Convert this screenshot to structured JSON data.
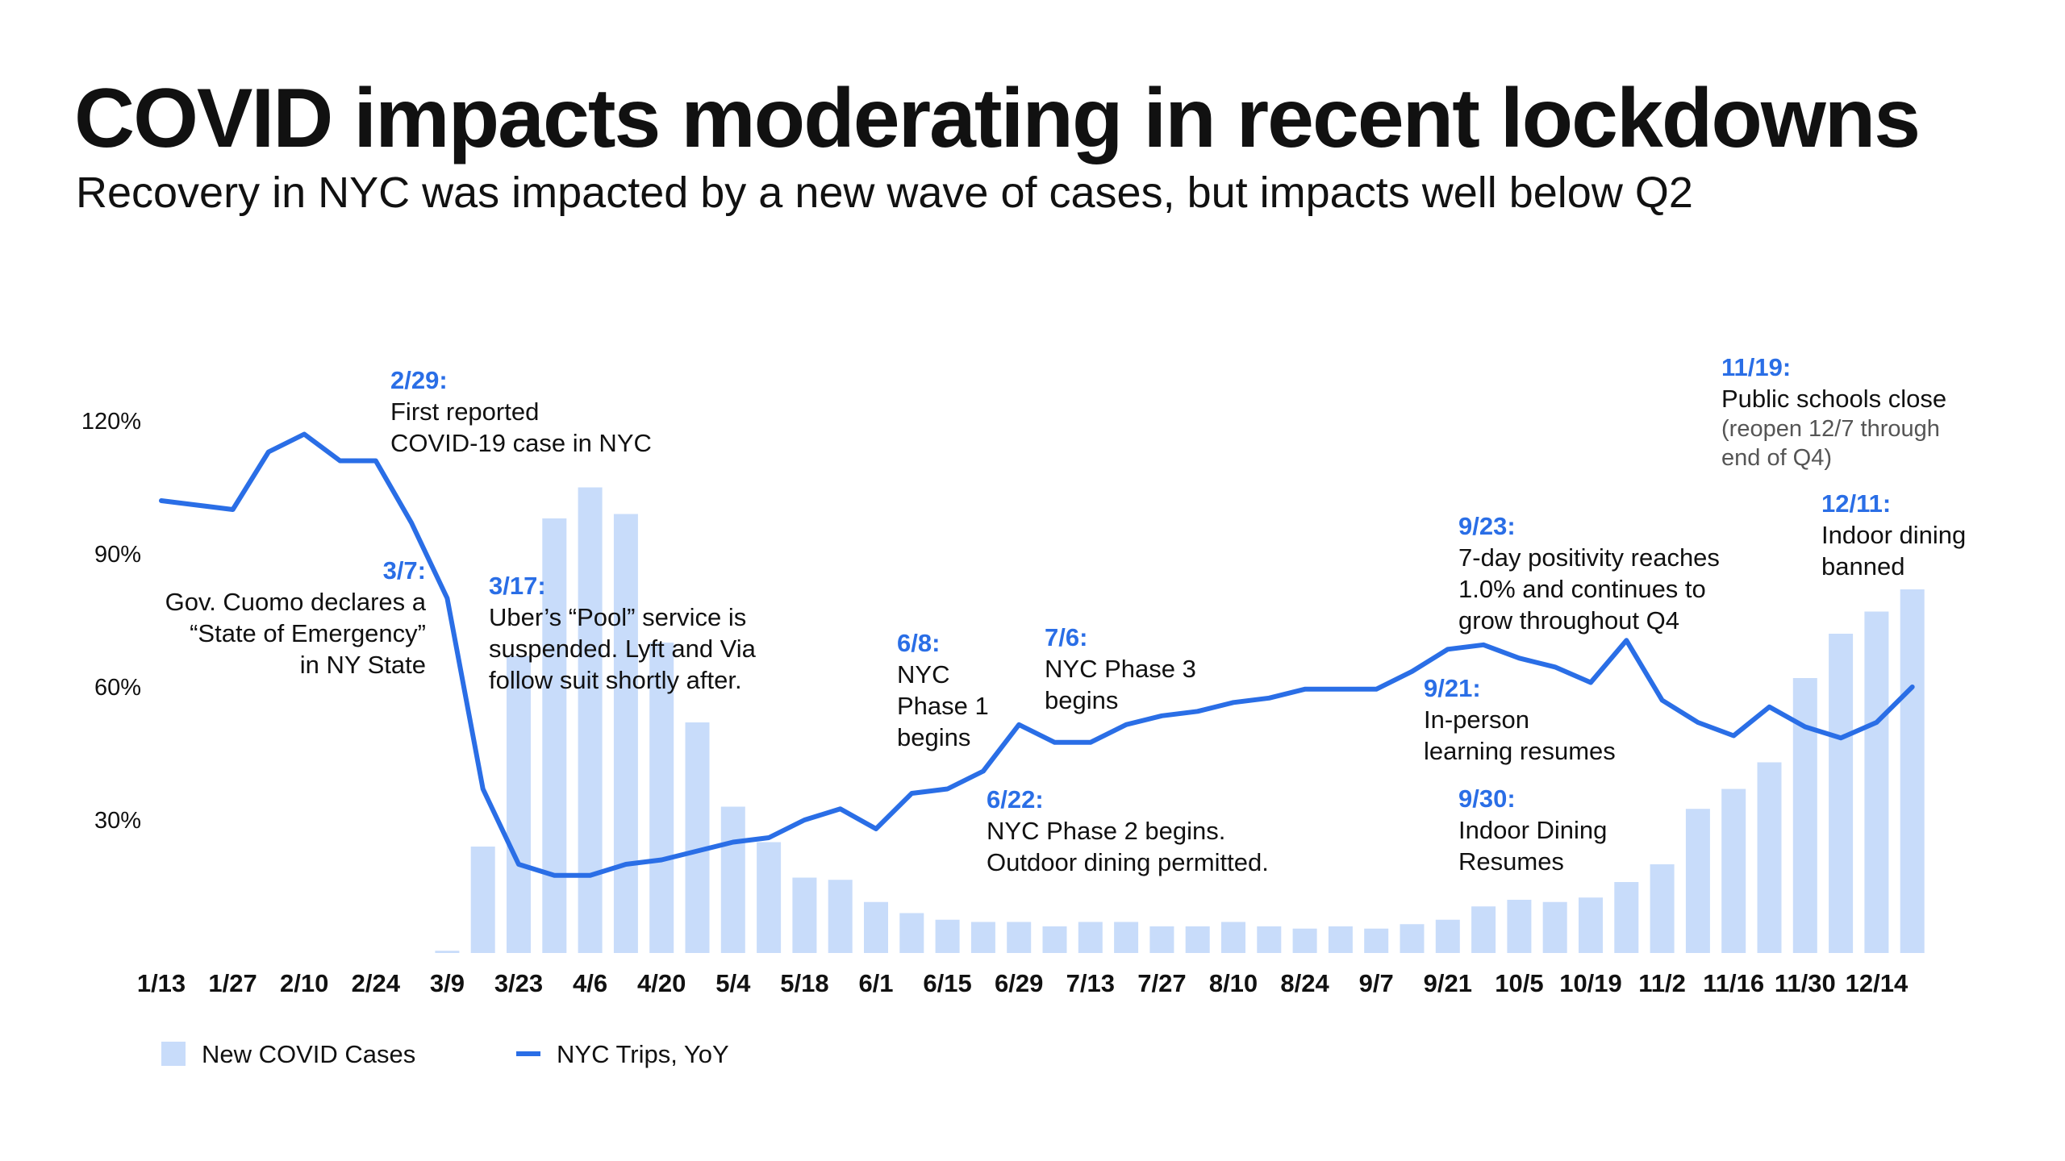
{
  "header": {
    "title": "COVID impacts moderating in recent lockdowns",
    "subtitle": "Recovery in NYC was impacted by a new wave of cases, but impacts well below Q2"
  },
  "colors": {
    "line": "#2a6ee6",
    "bar": "#c8dcfa",
    "annotation_date": "#2a6ee6",
    "text": "#111111",
    "muted": "#555555"
  },
  "chart_data": {
    "type": "bar",
    "title": "COVID impacts moderating in recent lockdowns",
    "subtitle": "Recovery in NYC was impacted by a new wave of cases, but impacts well below Q2",
    "xlabel": "",
    "ylabel": "",
    "ylim": [
      0,
      130
    ],
    "grid": false,
    "legend_position": "bottom-left",
    "x_tick_labels": [
      "1/13",
      "1/27",
      "2/10",
      "2/24",
      "3/9",
      "3/23",
      "4/6",
      "4/20",
      "5/4",
      "5/18",
      "6/1",
      "6/15",
      "6/29",
      "7/13",
      "7/27",
      "8/10",
      "8/24",
      "9/7",
      "9/21",
      "10/5",
      "10/19",
      "11/2",
      "11/16",
      "11/30",
      "12/14"
    ],
    "y_ticks": [
      30,
      60,
      90,
      120
    ],
    "y_tick_labels": [
      "30%",
      "60%",
      "90%",
      "120%"
    ],
    "weeks": [
      "1/13",
      "1/20",
      "1/27",
      "2/3",
      "2/10",
      "2/17",
      "2/24",
      "3/2",
      "3/9",
      "3/16",
      "3/23",
      "3/30",
      "4/6",
      "4/13",
      "4/20",
      "4/27",
      "5/4",
      "5/11",
      "5/18",
      "5/25",
      "6/1",
      "6/8",
      "6/15",
      "6/22",
      "6/29",
      "7/6",
      "7/13",
      "7/20",
      "7/27",
      "8/3",
      "8/10",
      "8/17",
      "8/24",
      "8/31",
      "9/7",
      "9/14",
      "9/21",
      "9/28",
      "10/5",
      "10/12",
      "10/19",
      "10/26",
      "11/2",
      "11/9",
      "11/16",
      "11/23",
      "11/30",
      "12/7",
      "12/14",
      "12/21"
    ],
    "series": [
      {
        "name": "New COVID Cases",
        "type": "bar",
        "color": "#c8dcfa",
        "values": [
          0,
          0,
          0,
          0,
          0,
          0,
          0,
          0,
          0.5,
          24,
          67,
          98,
          105,
          99,
          70,
          52,
          33,
          25,
          17,
          16.5,
          11.5,
          9,
          7.5,
          7,
          7,
          6,
          7,
          7,
          6,
          6,
          7,
          6,
          5.5,
          6,
          5.5,
          6.5,
          7.5,
          10.5,
          12,
          11.5,
          12.5,
          16,
          20,
          32.5,
          37,
          43,
          62,
          72,
          77,
          82
        ]
      },
      {
        "name": "NYC Trips, YoY",
        "type": "line",
        "color": "#2a6ee6",
        "values": [
          102,
          101,
          100,
          113,
          117,
          111,
          111,
          97,
          80,
          37,
          20,
          17.5,
          17.5,
          20,
          21,
          23,
          25,
          26,
          30,
          32.5,
          28,
          36,
          37,
          41,
          51.5,
          47.5,
          47.5,
          51.5,
          53.5,
          54.5,
          56.5,
          57.5,
          59.5,
          59.5,
          59.5,
          63.5,
          68.5,
          69.5,
          66.5,
          64.5,
          61,
          70.5,
          57,
          52,
          49,
          55.5,
          51,
          48.5,
          52,
          60
        ]
      }
    ],
    "annotations": [
      {
        "date": "2/29:",
        "text": [
          "First reported",
          "COVID-19 case in NYC"
        ]
      },
      {
        "date": "3/7:",
        "text": [
          "Gov. Cuomo declares a",
          "“State of Emergency”",
          "in NY State"
        ]
      },
      {
        "date": "3/17:",
        "text": [
          "Uber’s “Pool” service is",
          "suspended. Lyft and Via",
          "follow suit shortly after."
        ]
      },
      {
        "date": "6/8:",
        "text": [
          "NYC",
          "Phase 1",
          "begins"
        ]
      },
      {
        "date": "6/22:",
        "text": [
          "NYC Phase 2 begins.",
          "Outdoor dining permitted."
        ]
      },
      {
        "date": "7/6:",
        "text": [
          "NYC Phase 3",
          "begins"
        ]
      },
      {
        "date": "9/21:",
        "text": [
          "In-person",
          "learning resumes"
        ]
      },
      {
        "date": "9/23:",
        "text": [
          "7-day positivity reaches",
          "1.0% and continues to",
          "grow throughout Q4"
        ]
      },
      {
        "date": "9/30:",
        "text": [
          "Indoor Dining",
          "Resumes"
        ]
      },
      {
        "date": "11/19:",
        "text": [
          "Public schools close"
        ],
        "subtext": [
          "(reopen 12/7 through",
          "end of Q4)"
        ]
      },
      {
        "date": "12/11:",
        "text": [
          "Indoor dining",
          "banned"
        ]
      }
    ]
  }
}
